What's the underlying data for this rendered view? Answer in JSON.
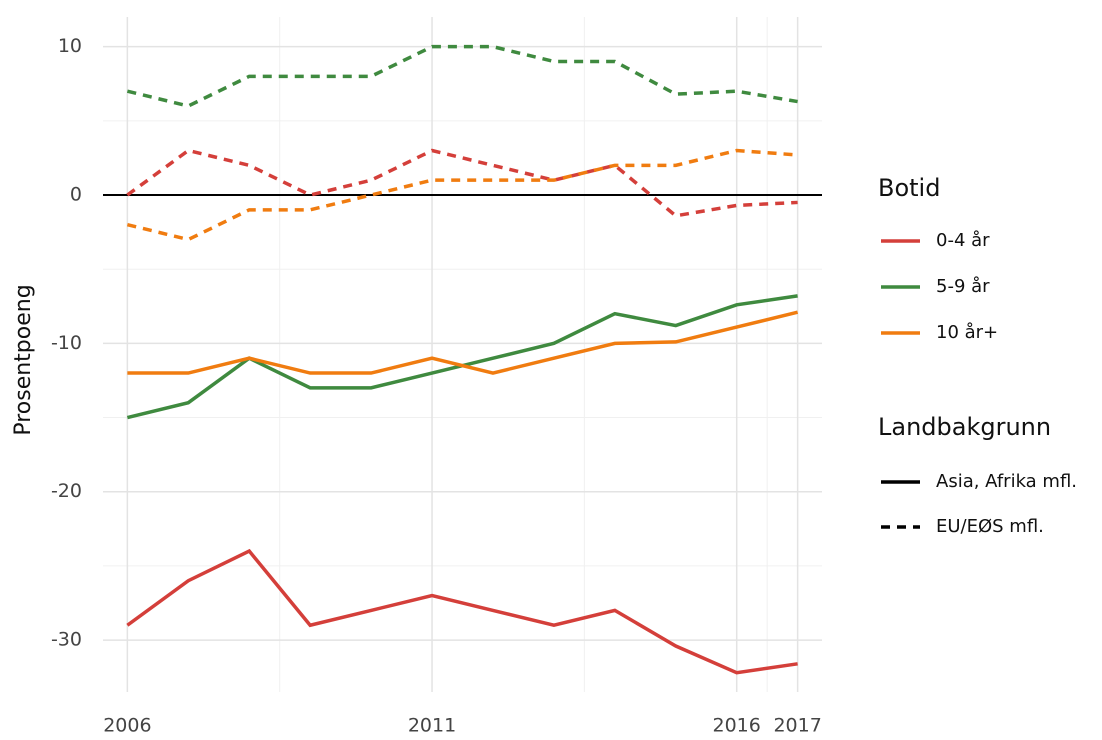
{
  "chart_data": {
    "type": "line",
    "y_label": "Prosentpoeng",
    "x": [
      2006,
      2007,
      2008,
      2009,
      2010,
      2011,
      2012,
      2013,
      2014,
      2015,
      2016,
      2017
    ],
    "xlim": [
      2005.6,
      2017.4
    ],
    "xticks": [
      2006,
      2011,
      2016,
      2017
    ],
    "x_minor_grid": [
      2008.5,
      2013.5,
      2016.5
    ],
    "ylim": [
      -33.5,
      12
    ],
    "yticks": [
      10,
      0,
      -10,
      -20,
      -30
    ],
    "y_minor_grid": [
      5,
      -5,
      -15,
      -25
    ],
    "hline": 0,
    "grid": true,
    "legends": [
      {
        "title": "Botid",
        "items": [
          {
            "name": "0-4 år",
            "color": "#d43f3a"
          },
          {
            "name": "5-9 år",
            "color": "#3f8a3f"
          },
          {
            "name": "10 år+",
            "color": "#f07c10"
          }
        ]
      },
      {
        "title": "Landbakgrunn",
        "items": [
          {
            "name": "Asia, Afrika mfl.",
            "dash": "none"
          },
          {
            "name": "EU/EØS mfl.",
            "dash": "9,7"
          }
        ]
      }
    ],
    "series": [
      {
        "botid": 0,
        "landbakgrunn": 0,
        "values": [
          -29,
          -26,
          -24,
          -29,
          -28,
          -27,
          -28,
          -29,
          -28,
          -30.4,
          -32.2,
          -31.6
        ]
      },
      {
        "botid": 1,
        "landbakgrunn": 0,
        "values": [
          -15,
          -14,
          -11,
          -13,
          -13,
          -12,
          -11,
          -10,
          -8,
          -8.8,
          -7.4,
          -6.8
        ]
      },
      {
        "botid": 2,
        "landbakgrunn": 0,
        "values": [
          -12,
          -12,
          -11,
          -12,
          -12,
          -11,
          -12,
          -11,
          -10,
          -9.9,
          -8.9,
          -7.9
        ]
      },
      {
        "botid": 1,
        "landbakgrunn": 1,
        "values": [
          7,
          6,
          8,
          8,
          8,
          10,
          10,
          9,
          9,
          6.8,
          7,
          6.3
        ]
      },
      {
        "botid": 0,
        "landbakgrunn": 1,
        "values": [
          0,
          3,
          2,
          0,
          1,
          3,
          2,
          1,
          2,
          -1.4,
          -0.7,
          -0.5
        ]
      },
      {
        "botid": 2,
        "landbakgrunn": 1,
        "values": [
          -2,
          -3,
          -1,
          -1,
          0,
          1,
          1,
          1,
          2,
          2,
          3,
          2.7
        ]
      }
    ]
  }
}
